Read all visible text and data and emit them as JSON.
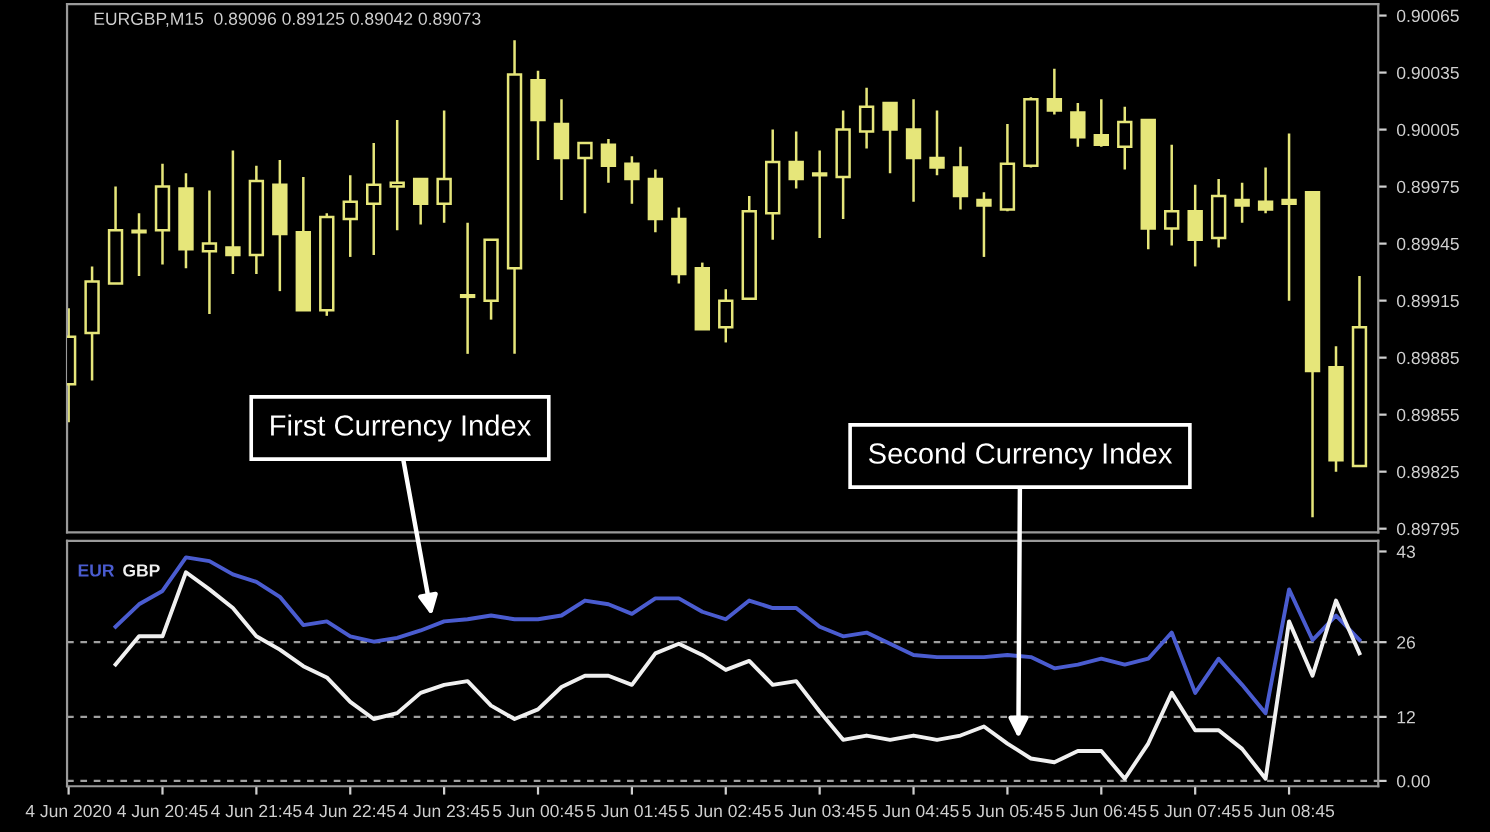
{
  "chart_data": [
    {
      "type": "candlestick",
      "color": "#e6e67a",
      "annotations": [
        "EURGBP,M15  0.89096 0.89125 0.89042 0.89073"
      ],
      "x": [
        "2020-06-04T19:45",
        "2020-06-04T20:00",
        "2020-06-04T20:15",
        "2020-06-04T20:30",
        "2020-06-04T20:45",
        "2020-06-04T21:00",
        "2020-06-04T21:15",
        "2020-06-04T21:30",
        "2020-06-04T21:45",
        "2020-06-04T22:00",
        "2020-06-04T22:15",
        "2020-06-04T22:30",
        "2020-06-04T22:45",
        "2020-06-04T23:00",
        "2020-06-04T23:15",
        "2020-06-04T23:30",
        "2020-06-04T23:45",
        "2020-06-05T00:00",
        "2020-06-05T00:15",
        "2020-06-05T00:30",
        "2020-06-05T00:45",
        "2020-06-05T01:00",
        "2020-06-05T01:15",
        "2020-06-05T01:30",
        "2020-06-05T01:45",
        "2020-06-05T02:00",
        "2020-06-05T02:15",
        "2020-06-05T02:30",
        "2020-06-05T02:45",
        "2020-06-05T03:00",
        "2020-06-05T03:15",
        "2020-06-05T03:30",
        "2020-06-05T03:45",
        "2020-06-05T04:00",
        "2020-06-05T04:15",
        "2020-06-05T04:30",
        "2020-06-05T04:45",
        "2020-06-05T05:00",
        "2020-06-05T05:15",
        "2020-06-05T05:30",
        "2020-06-05T05:45",
        "2020-06-05T06:00",
        "2020-06-05T06:15",
        "2020-06-05T06:30",
        "2020-06-05T06:45",
        "2020-06-05T07:00",
        "2020-06-05T07:15",
        "2020-06-05T07:30",
        "2020-06-05T07:45",
        "2020-06-05T08:00",
        "2020-06-05T08:15",
        "2020-06-05T08:30",
        "2020-06-05T08:45",
        "2020-06-05T09:00",
        "2020-06-05T09:15",
        "2020-06-05T09:30"
      ],
      "ohlc": [
        [
          0.89871,
          0.89911,
          0.89851,
          0.89896
        ],
        [
          0.89898,
          0.89933,
          0.89873,
          0.89925
        ],
        [
          0.89924,
          0.89975,
          0.89924,
          0.89952
        ],
        [
          0.89951,
          0.89961,
          0.89928,
          0.89951
        ],
        [
          0.89952,
          0.89987,
          0.89934,
          0.89975
        ],
        [
          0.89974,
          0.89982,
          0.89932,
          0.89942
        ],
        [
          0.89941,
          0.89973,
          0.89908,
          0.89945
        ],
        [
          0.89943,
          0.89994,
          0.89929,
          0.89939
        ],
        [
          0.89939,
          0.89986,
          0.89929,
          0.89978
        ],
        [
          0.89976,
          0.89989,
          0.8992,
          0.8995
        ],
        [
          0.89951,
          0.8998,
          0.8991,
          0.8991
        ],
        [
          0.8991,
          0.89961,
          0.89907,
          0.89959
        ],
        [
          0.89958,
          0.89981,
          0.89938,
          0.89967
        ],
        [
          0.89966,
          0.89998,
          0.89939,
          0.89976
        ],
        [
          0.89975,
          0.9001,
          0.89952,
          0.89977
        ],
        [
          0.89979,
          0.89979,
          0.89955,
          0.89966
        ],
        [
          0.89966,
          0.90015,
          0.89956,
          0.89979
        ],
        [
          0.89917,
          0.89956,
          0.89887,
          0.89917
        ],
        [
          0.89915,
          0.89947,
          0.89905,
          0.89947
        ],
        [
          0.89932,
          0.90052,
          0.89887,
          0.90034
        ],
        [
          0.90031,
          0.90036,
          0.89989,
          0.9001
        ],
        [
          0.90008,
          0.90021,
          0.89968,
          0.8999
        ],
        [
          0.8999,
          0.89998,
          0.89961,
          0.89998
        ],
        [
          0.89997,
          0.9,
          0.89977,
          0.89986
        ],
        [
          0.89987,
          0.89991,
          0.89966,
          0.89979
        ],
        [
          0.89979,
          0.89984,
          0.89951,
          0.89958
        ],
        [
          0.89958,
          0.89964,
          0.89924,
          0.89929
        ],
        [
          0.89932,
          0.89935,
          0.899,
          0.899
        ],
        [
          0.89901,
          0.89921,
          0.89893,
          0.89915
        ],
        [
          0.89916,
          0.8997,
          0.89916,
          0.89962
        ],
        [
          0.89961,
          0.90005,
          0.89947,
          0.89988
        ],
        [
          0.89988,
          0.90004,
          0.89974,
          0.89979
        ],
        [
          0.89981,
          0.89994,
          0.89948,
          0.89981
        ],
        [
          0.8998,
          0.90015,
          0.89958,
          0.90005
        ],
        [
          0.90004,
          0.90027,
          0.89995,
          0.90017
        ],
        [
          0.90019,
          0.90019,
          0.89982,
          0.90005
        ],
        [
          0.90005,
          0.90021,
          0.89967,
          0.8999
        ],
        [
          0.8999,
          0.90015,
          0.89981,
          0.89985
        ],
        [
          0.89985,
          0.89996,
          0.89963,
          0.8997
        ],
        [
          0.89968,
          0.89972,
          0.89938,
          0.89965
        ],
        [
          0.89963,
          0.90008,
          0.89962,
          0.89987
        ],
        [
          0.89986,
          0.90022,
          0.89985,
          0.90021
        ],
        [
          0.90021,
          0.90037,
          0.90013,
          0.90015
        ],
        [
          0.90014,
          0.90019,
          0.89996,
          0.90001
        ],
        [
          0.90002,
          0.90021,
          0.89996,
          0.89997
        ],
        [
          0.89996,
          0.90017,
          0.89984,
          0.90009
        ],
        [
          0.9001,
          0.9001,
          0.89942,
          0.89953
        ],
        [
          0.89953,
          0.89997,
          0.89944,
          0.89962
        ],
        [
          0.89962,
          0.89976,
          0.89933,
          0.89947
        ],
        [
          0.89948,
          0.89979,
          0.89943,
          0.8997
        ],
        [
          0.89968,
          0.89977,
          0.89956,
          0.89965
        ],
        [
          0.89967,
          0.89985,
          0.89961,
          0.89963
        ],
        [
          0.89968,
          0.90003,
          0.89915,
          0.89966
        ],
        [
          0.89972,
          0.89972,
          0.89801,
          0.89878
        ],
        [
          0.8988,
          0.89891,
          0.89825,
          0.89831
        ],
        [
          0.89828,
          0.89928,
          0.89828,
          0.89901
        ]
      ],
      "xlim": [
        "2020-06-04T19:44",
        "2020-06-05T09:42"
      ],
      "ylim": [
        0.89793,
        0.90071
      ],
      "yticks": [
        0.90065,
        0.90035,
        0.90005,
        0.89975,
        0.89945,
        0.89915,
        0.89885,
        0.89855,
        0.89825,
        0.89795
      ],
      "tick_labels": "y"
    },
    {
      "type": "line",
      "legend": "top left",
      "x": [
        "2020-06-04T20:15",
        "2020-06-04T20:30",
        "2020-06-04T20:45",
        "2020-06-04T21:00",
        "2020-06-04T21:15",
        "2020-06-04T21:30",
        "2020-06-04T21:45",
        "2020-06-04T22:00",
        "2020-06-04T22:15",
        "2020-06-04T22:30",
        "2020-06-04T22:45",
        "2020-06-04T23:00",
        "2020-06-04T23:15",
        "2020-06-04T23:30",
        "2020-06-04T23:45",
        "2020-06-05T00:00",
        "2020-06-05T00:15",
        "2020-06-05T00:30",
        "2020-06-05T00:45",
        "2020-06-05T01:00",
        "2020-06-05T01:15",
        "2020-06-05T01:30",
        "2020-06-05T01:45",
        "2020-06-05T02:00",
        "2020-06-05T02:15",
        "2020-06-05T02:30",
        "2020-06-05T02:45",
        "2020-06-05T03:00",
        "2020-06-05T03:15",
        "2020-06-05T03:30",
        "2020-06-05T03:45",
        "2020-06-05T04:00",
        "2020-06-05T04:15",
        "2020-06-05T04:30",
        "2020-06-05T04:45",
        "2020-06-05T05:00",
        "2020-06-05T05:15",
        "2020-06-05T05:30",
        "2020-06-05T05:45",
        "2020-06-05T06:00",
        "2020-06-05T06:15",
        "2020-06-05T06:30",
        "2020-06-05T06:45",
        "2020-06-05T07:00",
        "2020-06-05T07:15",
        "2020-06-05T07:30",
        "2020-06-05T07:45",
        "2020-06-05T08:00",
        "2020-06-05T08:15",
        "2020-06-05T08:30",
        "2020-06-05T08:45",
        "2020-06-05T09:00",
        "2020-06-05T09:15",
        "2020-06-05T09:30"
      ],
      "series": [
        {
          "name": "EUR",
          "color": "#4a5cd0",
          "values": [
            28.9,
            33.1,
            35.6,
            41.9,
            41.2,
            38.7,
            37.3,
            34.5,
            29.2,
            29.9,
            27.1,
            26.1,
            26.8,
            28.2,
            29.9,
            30.3,
            31.0,
            30.3,
            30.3,
            31.0,
            33.8,
            33.1,
            31.3,
            34.2,
            34.2,
            31.7,
            30.3,
            33.8,
            32.4,
            32.4,
            28.9,
            27.1,
            27.8,
            25.7,
            23.6,
            23.2,
            23.2,
            23.2,
            23.6,
            23.2,
            21.1,
            21.8,
            22.9,
            21.8,
            22.9,
            27.8,
            16.5,
            22.9,
            18.0,
            12.7,
            35.9,
            26.4,
            31.0,
            26.4
          ]
        },
        {
          "name": "GBP",
          "color": "#f0f0f0",
          "values": [
            21.8,
            27.1,
            27.1,
            39.1,
            35.9,
            32.4,
            27.1,
            24.6,
            21.5,
            19.4,
            14.8,
            11.6,
            12.7,
            16.5,
            18.0,
            18.7,
            14.1,
            11.6,
            13.4,
            17.6,
            19.7,
            19.7,
            18.0,
            23.9,
            25.7,
            23.6,
            20.8,
            22.5,
            18.0,
            18.7,
            13.0,
            7.7,
            8.5,
            7.7,
            8.5,
            7.7,
            8.5,
            10.2,
            7.0,
            4.2,
            3.5,
            5.6,
            5.6,
            0.4,
            7.0,
            16.5,
            9.5,
            9.5,
            6.0,
            0.4,
            29.9,
            19.7,
            33.8,
            23.9
          ]
        }
      ],
      "xlim": [
        "2020-06-04T19:44",
        "2020-06-05T09:42"
      ],
      "xticks": [
        {
          "value": "2020-06-04T19:45",
          "label": "4 Jun 2020"
        },
        {
          "value": "2020-06-04T20:45",
          "label": "4 Jun 20:45"
        },
        {
          "value": "2020-06-04T21:45",
          "label": "4 Jun 21:45"
        },
        {
          "value": "2020-06-04T22:45",
          "label": "4 Jun 22:45"
        },
        {
          "value": "2020-06-04T23:45",
          "label": "4 Jun 23:45"
        },
        {
          "value": "2020-06-05T00:45",
          "label": "5 Jun 00:45"
        },
        {
          "value": "2020-06-05T01:45",
          "label": "5 Jun 01:45"
        },
        {
          "value": "2020-06-05T02:45",
          "label": "5 Jun 02:45"
        },
        {
          "value": "2020-06-05T03:45",
          "label": "5 Jun 03:45"
        },
        {
          "value": "2020-06-05T04:45",
          "label": "5 Jun 04:45"
        },
        {
          "value": "2020-06-05T05:45",
          "label": "5 Jun 05:45"
        },
        {
          "value": "2020-06-05T06:45",
          "label": "5 Jun 06:45"
        },
        {
          "value": "2020-06-05T07:45",
          "label": "5 Jun 07:45"
        },
        {
          "value": "2020-06-05T08:45",
          "label": "5 Jun 08:45"
        }
      ],
      "ylim": [
        -1,
        45
      ],
      "yticks": [
        43,
        26,
        12,
        {
          "value": 0,
          "label": "0.00"
        }
      ],
      "ref_lines": [
        {
          "axis": "y",
          "value": 26,
          "color": "#a0a0a0",
          "line_style": "dashed"
        },
        {
          "axis": "y",
          "value": 12,
          "color": "#a0a0a0",
          "line_style": "dashed"
        },
        {
          "axis": "y",
          "value": 0,
          "color": "#a0a0a0",
          "line_style": "dashed"
        }
      ],
      "annotations": [
        {
          "text": "First Currency Index",
          "x": "2020-06-04T23:37",
          "y": 31
        },
        {
          "text": "Second Currency Index",
          "x": "2020-06-05T05:52",
          "y": 8
        }
      ]
    }
  ]
}
